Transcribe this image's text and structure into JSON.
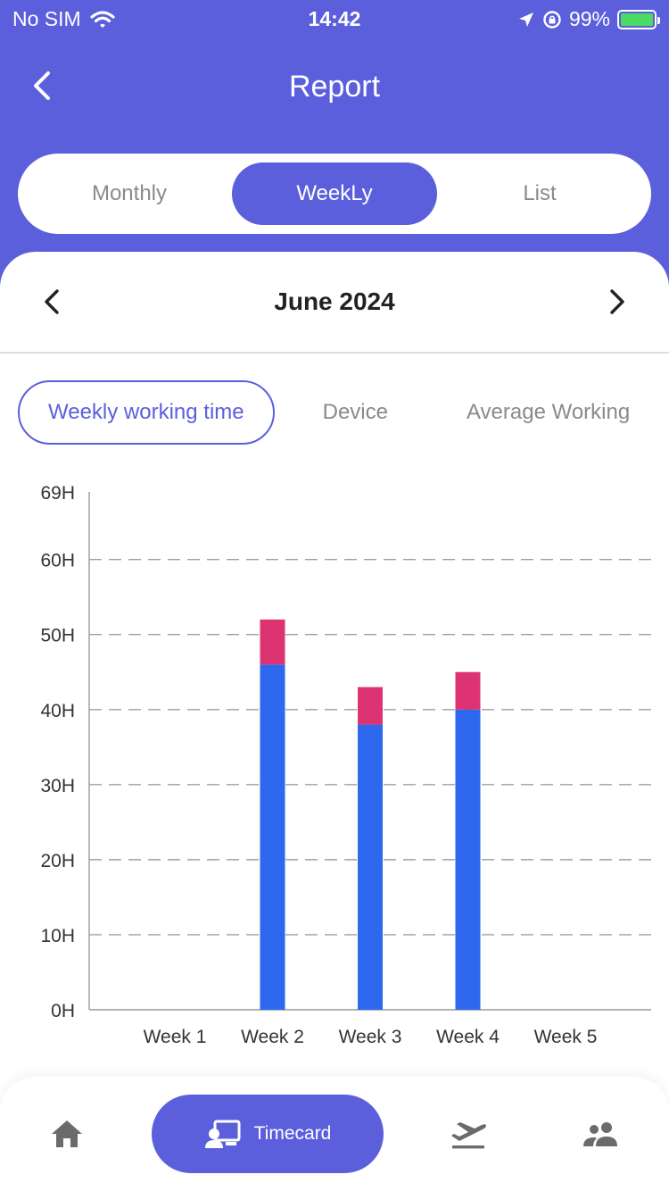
{
  "status_bar": {
    "carrier": "No SIM",
    "time": "14:42",
    "battery": "99%"
  },
  "header": {
    "title": "Report"
  },
  "view_tabs": [
    {
      "label": "Monthly",
      "selected": false
    },
    {
      "label": "WeekLy",
      "selected": true
    },
    {
      "label": "List",
      "selected": false
    }
  ],
  "period": {
    "label": "June 2024"
  },
  "metric_tabs": [
    {
      "label": "Weekly working time",
      "selected": true
    },
    {
      "label": "Device",
      "selected": false
    },
    {
      "label": "Average Working",
      "selected": false
    }
  ],
  "chart_data": {
    "type": "bar",
    "stacked": true,
    "categories": [
      "Week 1",
      "Week 2",
      "Week 3",
      "Week 4",
      "Week 5"
    ],
    "series": [
      {
        "values": [
          0,
          46,
          38,
          40,
          0
        ],
        "color": "#2d68ee"
      },
      {
        "values": [
          0,
          6,
          5,
          5,
          0
        ],
        "color": "#de3372"
      }
    ],
    "ylim": [
      0,
      69
    ],
    "y_ticks": [
      0,
      10,
      20,
      30,
      40,
      50,
      60,
      69
    ],
    "y_tick_labels": [
      "0H",
      "10H",
      "20H",
      "30H",
      "40H",
      "50H",
      "60H",
      "69H"
    ],
    "grid": "dashed horizontal"
  },
  "bottom_nav": {
    "items": [
      {
        "icon": "home-icon",
        "label": ""
      },
      {
        "icon": "timecard-icon",
        "label": "Timecard",
        "active": true
      },
      {
        "icon": "flight-departure-icon",
        "label": ""
      },
      {
        "icon": "people-icon",
        "label": ""
      }
    ]
  },
  "colors": {
    "primary": "#5b5fdc",
    "bar_primary": "#2d68ee",
    "bar_secondary": "#de3372"
  }
}
